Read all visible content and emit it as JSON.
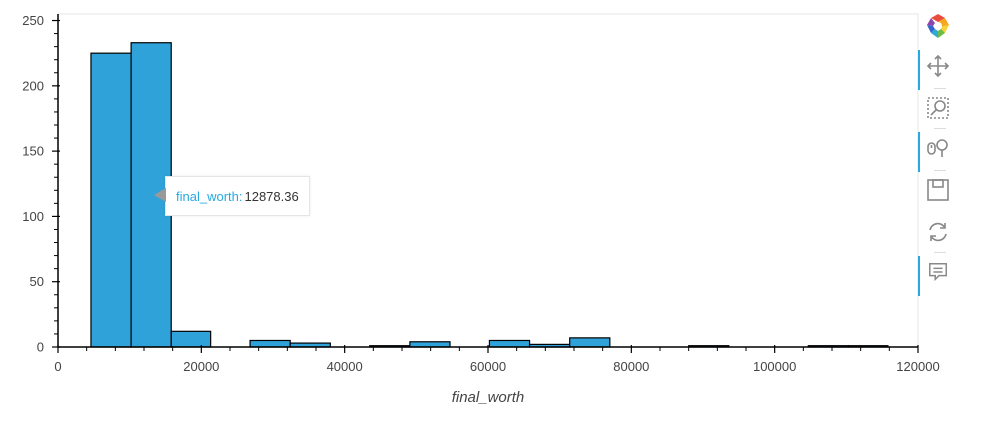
{
  "chart_data": {
    "type": "bar",
    "title": "",
    "xlabel": "final_worth",
    "ylabel": "",
    "xlim": [
      0,
      120000
    ],
    "ylim": [
      0,
      255
    ],
    "x_ticks": [
      0,
      20000,
      40000,
      60000,
      80000,
      100000,
      120000
    ],
    "y_ticks": [
      0,
      50,
      100,
      150,
      200,
      250
    ],
    "bins": [
      {
        "left": 4600,
        "right": 10200,
        "count": 225
      },
      {
        "left": 10200,
        "right": 15800,
        "count": 233
      },
      {
        "left": 15800,
        "right": 21300,
        "count": 12
      },
      {
        "left": 26800,
        "right": 32400,
        "count": 5
      },
      {
        "left": 32400,
        "right": 38000,
        "count": 3
      },
      {
        "left": 43500,
        "right": 49100,
        "count": 1
      },
      {
        "left": 49100,
        "right": 54700,
        "count": 4
      },
      {
        "left": 60200,
        "right": 65800,
        "count": 5
      },
      {
        "left": 65800,
        "right": 71400,
        "count": 2
      },
      {
        "left": 71400,
        "right": 77000,
        "count": 7
      },
      {
        "left": 88000,
        "right": 93600,
        "count": 1
      },
      {
        "left": 104700,
        "right": 110300,
        "count": 1
      },
      {
        "left": 110300,
        "right": 115800,
        "count": 1
      }
    ],
    "bar_color": "#30a2da",
    "bar_edge_color": "#000000",
    "grid": false
  },
  "tooltip": {
    "label": "final_worth:",
    "value": "12878.36"
  },
  "toolbar": {
    "tools": [
      "bokeh-logo-icon",
      "pan-icon",
      "box-zoom-icon",
      "wheel-zoom-icon",
      "save-icon",
      "reset-icon",
      "hover-icon"
    ]
  }
}
